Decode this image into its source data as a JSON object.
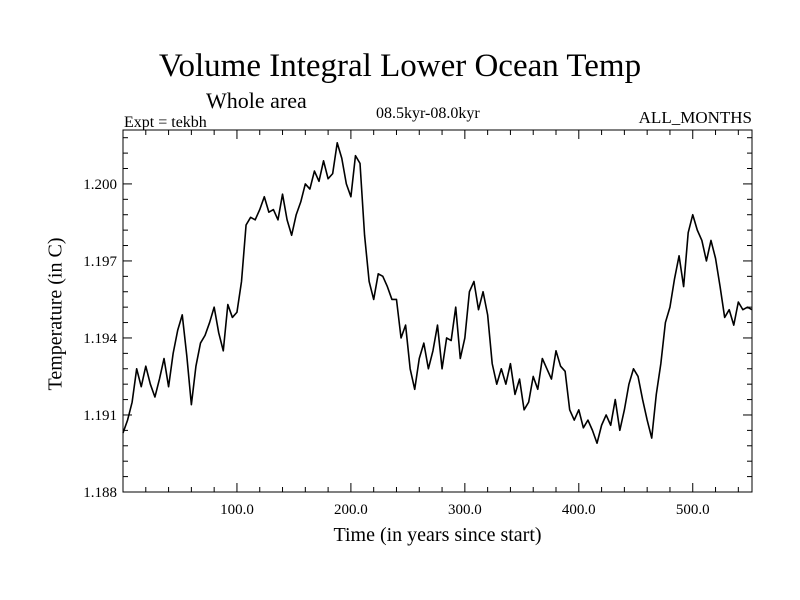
{
  "chart_data": {
    "type": "line",
    "title": "Volume Integral Lower Ocean Temp",
    "subtitle": "Whole area",
    "experiment": "Expt = tekbh",
    "period": "08.5kyr-08.0kyr",
    "months": "ALL_MONTHS",
    "xlabel": "Time (in years since start)",
    "ylabel": "Temperature (in C)",
    "xlim": [
      0,
      552
    ],
    "ylim": [
      1.188,
      1.2021
    ],
    "xticks": [
      100,
      200,
      300,
      400,
      500
    ],
    "xtick_labels": [
      "100.0",
      "200.0",
      "300.0",
      "400.0",
      "500.0"
    ],
    "yticks": [
      1.188,
      1.191,
      1.194,
      1.197,
      1.2
    ],
    "ytick_labels": [
      "1.188",
      "1.191",
      "1.194",
      "1.197",
      "1.200"
    ],
    "grid": false,
    "series": [
      {
        "name": "Temperature",
        "x": [
          0,
          4,
          8,
          12,
          16,
          20,
          24,
          28,
          32,
          36,
          40,
          44,
          48,
          52,
          56,
          60,
          64,
          68,
          72,
          76,
          80,
          84,
          88,
          92,
          96,
          100,
          104,
          108,
          112,
          116,
          120,
          124,
          128,
          132,
          136,
          140,
          144,
          148,
          152,
          156,
          160,
          164,
          168,
          172,
          176,
          180,
          184,
          188,
          192,
          196,
          200,
          204,
          208,
          212,
          216,
          220,
          224,
          228,
          232,
          236,
          240,
          244,
          248,
          252,
          256,
          260,
          264,
          268,
          272,
          276,
          280,
          284,
          288,
          292,
          296,
          300,
          304,
          308,
          312,
          316,
          320,
          324,
          328,
          332,
          336,
          340,
          344,
          348,
          352,
          356,
          360,
          364,
          368,
          372,
          376,
          380,
          384,
          388,
          392,
          396,
          400,
          404,
          408,
          412,
          416,
          420,
          424,
          428,
          432,
          436,
          440,
          444,
          448,
          452,
          456,
          460,
          464,
          468,
          472,
          476,
          480,
          484,
          488,
          492,
          496,
          500,
          504,
          508,
          512,
          516,
          520,
          524,
          528,
          532,
          536,
          540,
          544,
          548,
          552
        ],
        "values": [
          1.1903,
          1.1908,
          1.1915,
          1.1928,
          1.1921,
          1.1929,
          1.1922,
          1.1917,
          1.1924,
          1.1932,
          1.1921,
          1.1934,
          1.1943,
          1.1949,
          1.1933,
          1.1914,
          1.1929,
          1.1938,
          1.1941,
          1.1946,
          1.1952,
          1.1942,
          1.1935,
          1.1953,
          1.1948,
          1.195,
          1.1962,
          1.1984,
          1.1987,
          1.1986,
          1.199,
          1.1995,
          1.1989,
          1.199,
          1.1986,
          1.1996,
          1.1986,
          1.198,
          1.1988,
          1.1993,
          1.2,
          1.1998,
          1.2005,
          1.2001,
          1.2009,
          1.2002,
          1.2004,
          1.2016,
          1.201,
          1.2,
          1.1995,
          1.2011,
          1.2008,
          1.198,
          1.1962,
          1.1955,
          1.1965,
          1.1964,
          1.196,
          1.1955,
          1.1955,
          1.194,
          1.1945,
          1.1928,
          1.192,
          1.1932,
          1.1938,
          1.1928,
          1.1935,
          1.1945,
          1.1928,
          1.194,
          1.1939,
          1.1952,
          1.1932,
          1.194,
          1.1958,
          1.1962,
          1.1951,
          1.1958,
          1.1949,
          1.193,
          1.1922,
          1.1928,
          1.1922,
          1.193,
          1.1918,
          1.1924,
          1.1912,
          1.1915,
          1.1925,
          1.192,
          1.1932,
          1.1928,
          1.1924,
          1.1935,
          1.1929,
          1.1927,
          1.1912,
          1.1908,
          1.1912,
          1.1905,
          1.1908,
          1.1904,
          1.1899,
          1.1906,
          1.191,
          1.1906,
          1.1916,
          1.1904,
          1.1912,
          1.1922,
          1.1928,
          1.1925,
          1.1916,
          1.1908,
          1.1901,
          1.1918,
          1.193,
          1.1946,
          1.1952,
          1.1963,
          1.1972,
          1.196,
          1.1981,
          1.1988,
          1.1982,
          1.1978,
          1.197,
          1.1978,
          1.1971,
          1.196,
          1.1948,
          1.1951,
          1.1945,
          1.1954,
          1.1951,
          1.1952,
          1.1951
        ]
      }
    ]
  }
}
